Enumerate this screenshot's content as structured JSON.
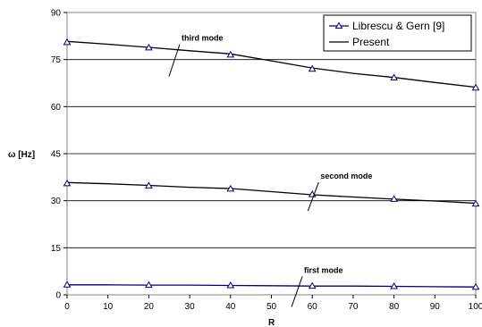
{
  "chart_data": {
    "type": "line",
    "xlabel": "R",
    "ylabel": "ω [Hz]",
    "xlim": [
      0,
      100
    ],
    "ylim": [
      0,
      90
    ],
    "xticks": [
      0,
      10,
      20,
      30,
      40,
      50,
      60,
      70,
      80,
      90,
      100
    ],
    "yticks": [
      0,
      15,
      30,
      45,
      60,
      75,
      90
    ],
    "grid": "horizontal",
    "legend_position": "top-right",
    "series": [
      {
        "name": "Librescu & Gern [9]",
        "style": "markers",
        "marker": "triangle",
        "color": "#000080",
        "curves": [
          {
            "x": [
              0,
              20,
              40,
              60,
              80,
              100
            ],
            "y": [
              3.2,
              3.1,
              3.0,
              2.8,
              2.7,
              2.5
            ]
          },
          {
            "x": [
              0,
              20,
              40,
              60,
              80,
              100
            ],
            "y": [
              35.5,
              34.8,
              33.8,
              32.0,
              30.5,
              29.0
            ]
          },
          {
            "x": [
              0,
              20,
              40,
              60,
              80,
              100
            ],
            "y": [
              80.5,
              78.8,
              76.5,
              72.0,
              69.2,
              66.0
            ]
          }
        ]
      },
      {
        "name": "Present",
        "style": "line",
        "colors": [
          "#000080",
          "#000000",
          "#000000"
        ],
        "curves": [
          {
            "x": [
              0,
              10,
              20,
              30,
              40,
              50,
              60,
              70,
              80,
              90,
              100
            ],
            "y": [
              3.2,
              3.2,
              3.1,
              3.1,
              3.0,
              2.9,
              2.8,
              2.8,
              2.7,
              2.6,
              2.5
            ]
          },
          {
            "x": [
              0,
              10,
              20,
              30,
              40,
              50,
              60,
              70,
              80,
              90,
              100
            ],
            "y": [
              35.8,
              35.4,
              34.9,
              34.3,
              33.9,
              32.9,
              31.9,
              31.2,
              30.5,
              29.9,
              29.2
            ]
          },
          {
            "x": [
              0,
              10,
              20,
              30,
              40,
              50,
              60,
              70,
              80,
              90,
              100
            ],
            "y": [
              80.8,
              79.9,
              78.9,
              77.8,
              76.8,
              74.6,
              72.3,
              70.6,
              69.3,
              67.7,
              66.2
            ]
          }
        ]
      }
    ],
    "annotations": [
      {
        "text": "third mode",
        "small": "",
        "x": 28,
        "y": 81
      },
      {
        "text": "second mode",
        "small": "",
        "x": 62,
        "y": 37
      },
      {
        "text": "first mode",
        "small": "",
        "x": 58,
        "y": 7
      }
    ]
  }
}
